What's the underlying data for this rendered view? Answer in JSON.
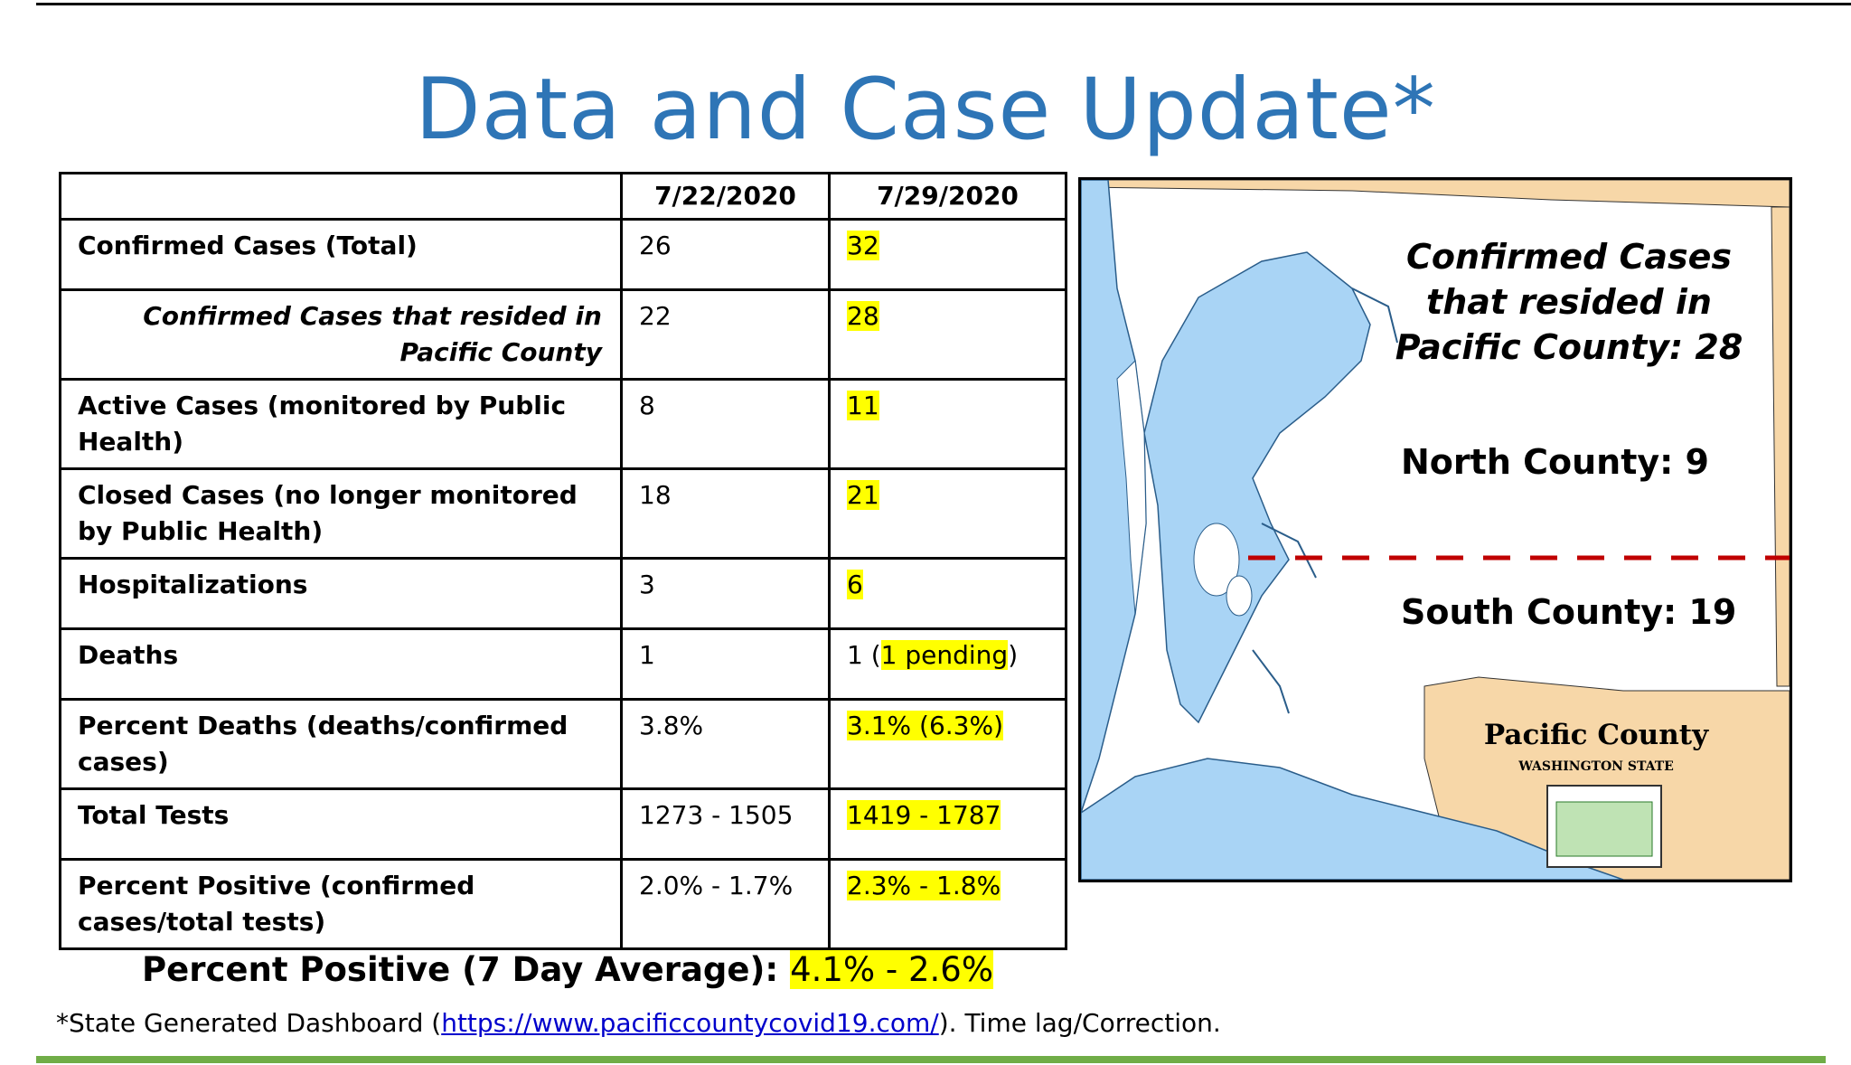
{
  "title": "Data and Case Update*",
  "table": {
    "header": [
      "",
      "7/22/2020",
      "7/29/2020"
    ],
    "rows": [
      {
        "label": "Confirmed Cases (Total)",
        "v1": "26",
        "v2": "32"
      },
      {
        "label": "Confirmed Cases that resided in Pacific County",
        "v1": "22",
        "v2": "28"
      },
      {
        "label": "Active Cases (monitored by Public Health)",
        "v1": "8",
        "v2": "11"
      },
      {
        "label": "Closed Cases (no longer monitored by Public Health)",
        "v1": "18",
        "v2": "21"
      },
      {
        "label": "Hospitalizations",
        "v1": "3",
        "v2": "6"
      },
      {
        "label": "Deaths",
        "v1": "1",
        "v2_prefix": "1 (",
        "v2_highlight": "1 pending",
        "v2_suffix": ")"
      },
      {
        "label": "Percent Deaths (deaths/confirmed cases)",
        "v1": "3.8%",
        "v2": "3.1% (6.3%)"
      },
      {
        "label": "Total Tests",
        "v1": "1273 - 1505",
        "v2": "1419 - 1787"
      },
      {
        "label": "Percent Positive (confirmed cases/total tests)",
        "v1": "2.0% - 1.7%",
        "v2": "2.3% - 1.8%"
      }
    ]
  },
  "map": {
    "confirmed_label_line1": "Confirmed Cases",
    "confirmed_label_line2": "that resided in",
    "confirmed_label_line3": "Pacific County: 28",
    "north_label": "North County: 9",
    "south_label": "South County: 19",
    "county_name": "Pacific County",
    "county_state": "WASHINGTON STATE",
    "colors": {
      "water": "#a9d4f5",
      "land": "#f7d7a8",
      "divider": "#c00000"
    }
  },
  "average": {
    "label": "Percent Positive (7 Day Average):",
    "value": "4.1% - 2.6%"
  },
  "footnote": {
    "prefix": "*State Generated Dashboard (",
    "link": "https://www.pacificcountycovid19.com/",
    "suffix": ").  Time lag/Correction."
  },
  "colors": {
    "title": "#2e75b6",
    "highlight": "#ffff00",
    "bottom_rule": "#70ad47"
  }
}
